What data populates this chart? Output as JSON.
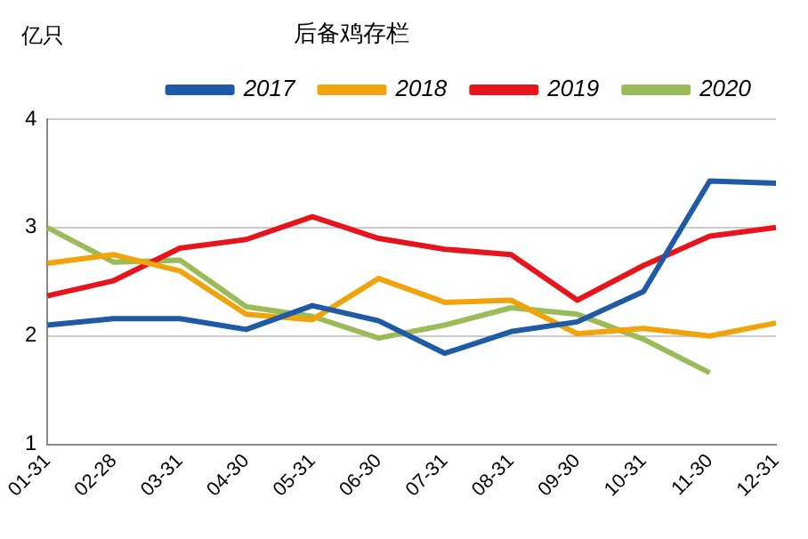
{
  "chart_data": {
    "type": "line",
    "title": "后备鸡存栏",
    "ylabel": "亿只",
    "categories": [
      "01-31",
      "02-28",
      "03-31",
      "04-30",
      "05-31",
      "06-30",
      "07-31",
      "08-31",
      "09-30",
      "10-31",
      "11-30",
      "12-31"
    ],
    "series": [
      {
        "name": "2017",
        "color": "#1f5aa6",
        "values": [
          2.1,
          2.16,
          2.16,
          2.06,
          2.28,
          2.14,
          1.84,
          2.04,
          2.13,
          2.41,
          3.43,
          3.41
        ]
      },
      {
        "name": "2018",
        "color": "#f0a30a",
        "values": [
          2.67,
          2.75,
          2.6,
          2.2,
          2.15,
          2.53,
          2.31,
          2.33,
          2.02,
          2.07,
          2.0,
          2.12
        ]
      },
      {
        "name": "2019",
        "color": "#e8141b",
        "values": [
          2.37,
          2.51,
          2.81,
          2.89,
          3.1,
          2.9,
          2.8,
          2.75,
          2.33,
          2.65,
          2.92,
          3.0
        ]
      },
      {
        "name": "2020",
        "color": "#9bbb59",
        "values": [
          3.0,
          2.68,
          2.7,
          2.27,
          2.18,
          1.98,
          2.1,
          2.26,
          2.2,
          1.97,
          1.66,
          null
        ]
      }
    ],
    "ylim": [
      1,
      4
    ],
    "yticks": [
      1,
      2,
      3,
      4
    ],
    "grid": "y",
    "legend": "top",
    "marker": "none",
    "line_style": "solid"
  }
}
